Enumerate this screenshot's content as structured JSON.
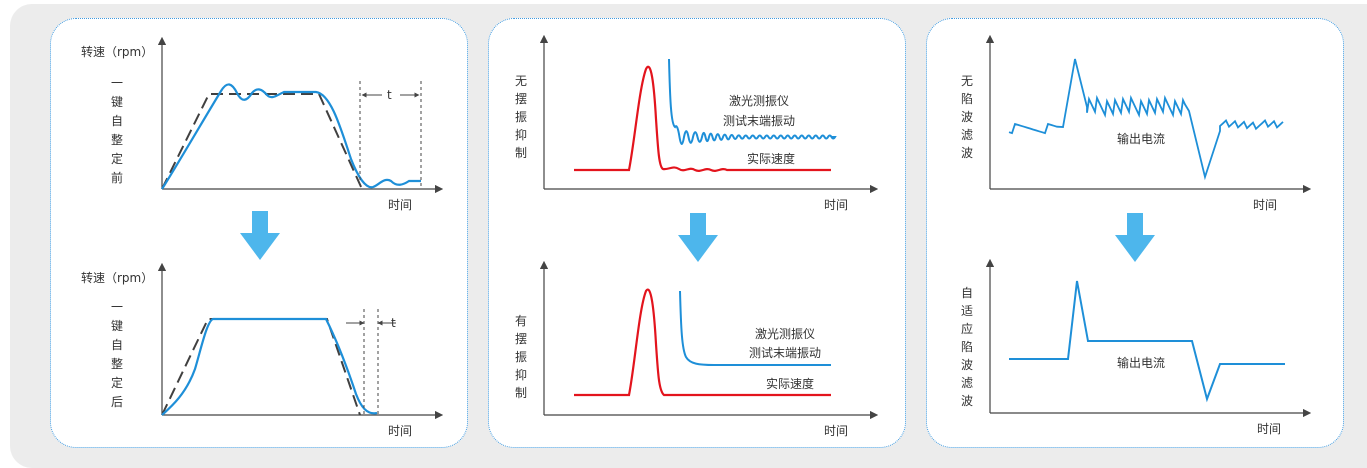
{
  "colors": {
    "blue_line": "#1e8fd8",
    "red_line": "#e3141d",
    "dash_line": "#404040",
    "arrow_fill": "#4db6ec",
    "panel_border": "#3f9ae0",
    "axis": "#444444"
  },
  "panel1": {
    "top": {
      "ylabel": "转速（rpm）",
      "side_label": [
        "一",
        "键",
        "自",
        "整",
        "定",
        "前"
      ],
      "xlabel": "时间",
      "t_label": "t"
    },
    "bottom": {
      "ylabel": "转速（rpm）",
      "side_label": [
        "一",
        "键",
        "自",
        "整",
        "定",
        "后"
      ],
      "xlabel": "时间",
      "t_label": "t"
    }
  },
  "panel2": {
    "top": {
      "side_label": [
        "无",
        "摆",
        "振",
        "抑",
        "制"
      ],
      "legend_line1": "激光测振仪",
      "legend_line2": "测试末端振动",
      "legend_speed": "实际速度",
      "xlabel": "时间"
    },
    "bottom": {
      "side_label": [
        "有",
        "摆",
        "振",
        "抑",
        "制"
      ],
      "legend_line1": "激光测振仪",
      "legend_line2": "测试末端振动",
      "legend_speed": "实际速度",
      "xlabel": "时间"
    }
  },
  "panel3": {
    "top": {
      "side_label": [
        "无",
        "陷",
        "波",
        "滤",
        "波"
      ],
      "curve_label": "输出电流",
      "xlabel": "时间"
    },
    "bottom": {
      "side_label": [
        "自",
        "适",
        "应",
        "陷",
        "波",
        "滤",
        "波"
      ],
      "curve_label": "输出电流",
      "xlabel": "时间"
    }
  }
}
